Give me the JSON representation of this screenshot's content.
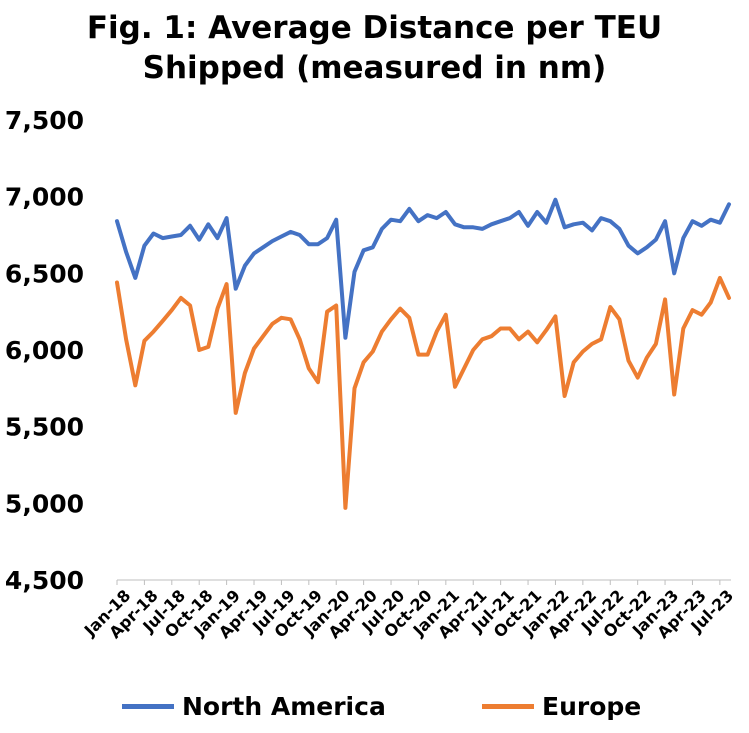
{
  "title_line1": "Fig. 1: Average Distance per TEU",
  "title_line2": "Shipped (measured in nm)",
  "chart_data": {
    "type": "line",
    "title": "Fig. 1: Average Distance per TEU Shipped (measured in nm)",
    "ylim": [
      4500,
      7500
    ],
    "yticks": [
      "7,500",
      "7,000",
      "6,500",
      "6,000",
      "5,500",
      "5,000",
      "4,500"
    ],
    "ytick_values": [
      7500,
      7000,
      6500,
      6000,
      5500,
      5000,
      4500
    ],
    "x": [
      "Jan-18",
      "Feb-18",
      "Mar-18",
      "Apr-18",
      "May-18",
      "Jun-18",
      "Jul-18",
      "Aug-18",
      "Sep-18",
      "Oct-18",
      "Nov-18",
      "Dec-18",
      "Jan-19",
      "Feb-19",
      "Mar-19",
      "Apr-19",
      "May-19",
      "Jun-19",
      "Jul-19",
      "Aug-19",
      "Sep-19",
      "Oct-19",
      "Nov-19",
      "Dec-19",
      "Jan-20",
      "Feb-20",
      "Mar-20",
      "Apr-20",
      "May-20",
      "Jun-20",
      "Jul-20",
      "Aug-20",
      "Sep-20",
      "Oct-20",
      "Nov-20",
      "Dec-20",
      "Jan-21",
      "Feb-21",
      "Mar-21",
      "Apr-21",
      "May-21",
      "Jun-21",
      "Jul-21",
      "Aug-21",
      "Sep-21",
      "Oct-21",
      "Nov-21",
      "Dec-21",
      "Jan-22",
      "Feb-22",
      "Mar-22",
      "Apr-22",
      "May-22",
      "Jun-22",
      "Jul-22",
      "Aug-22",
      "Sep-22",
      "Oct-22",
      "Nov-22",
      "Dec-22",
      "Jan-23",
      "Feb-23",
      "Mar-23",
      "Apr-23",
      "May-23",
      "Jun-23",
      "Jul-23",
      "Aug-23"
    ],
    "xtick_labels": [
      "Jan-18",
      "Apr-18",
      "Jul-18",
      "Oct-18",
      "Jan-19",
      "Apr-19",
      "Jul-19",
      "Oct-19",
      "Jan-20",
      "Apr-20",
      "Jul-20",
      "Oct-20",
      "Jan-21",
      "Apr-21",
      "Jul-21",
      "Oct-21",
      "Jan-22",
      "Apr-22",
      "Jul-22",
      "Oct-22",
      "Jan-23",
      "Apr-23",
      "Jul-23"
    ],
    "series": [
      {
        "name": "North America",
        "color": "#4472C4",
        "values": [
          6840,
          6640,
          6470,
          6680,
          6760,
          6730,
          6740,
          6750,
          6810,
          6720,
          6820,
          6730,
          6860,
          6400,
          6550,
          6630,
          6670,
          6710,
          6740,
          6770,
          6750,
          6690,
          6690,
          6730,
          6850,
          6080,
          6510,
          6650,
          6670,
          6790,
          6850,
          6840,
          6920,
          6840,
          6880,
          6860,
          6900,
          6820,
          6800,
          6800,
          6790,
          6820,
          6840,
          6860,
          6900,
          6810,
          6900,
          6830,
          6980,
          6800,
          6820,
          6830,
          6780,
          6860,
          6840,
          6790,
          6680,
          6630,
          6670,
          6720,
          6840,
          6500,
          6730,
          6840,
          6810,
          6850,
          6830,
          6950
        ]
      },
      {
        "name": "Europe",
        "color": "#ED7D31",
        "values": [
          6440,
          6070,
          5770,
          6060,
          6120,
          6190,
          6260,
          6340,
          6290,
          6000,
          6020,
          6270,
          6430,
          5590,
          5850,
          6010,
          6090,
          6170,
          6210,
          6200,
          6070,
          5880,
          5790,
          6250,
          6290,
          4970,
          5750,
          5920,
          5990,
          6120,
          6200,
          6270,
          6210,
          5970,
          5970,
          6120,
          6230,
          5760,
          5880,
          6000,
          6070,
          6090,
          6140,
          6140,
          6070,
          6120,
          6050,
          6130,
          6220,
          5700,
          5920,
          5990,
          6040,
          6070,
          6280,
          6200,
          5930,
          5820,
          5950,
          6040,
          6330,
          5710,
          6140,
          6260,
          6230,
          6310,
          6470,
          6340
        ]
      }
    ],
    "legend": "bottom",
    "grid": false
  }
}
